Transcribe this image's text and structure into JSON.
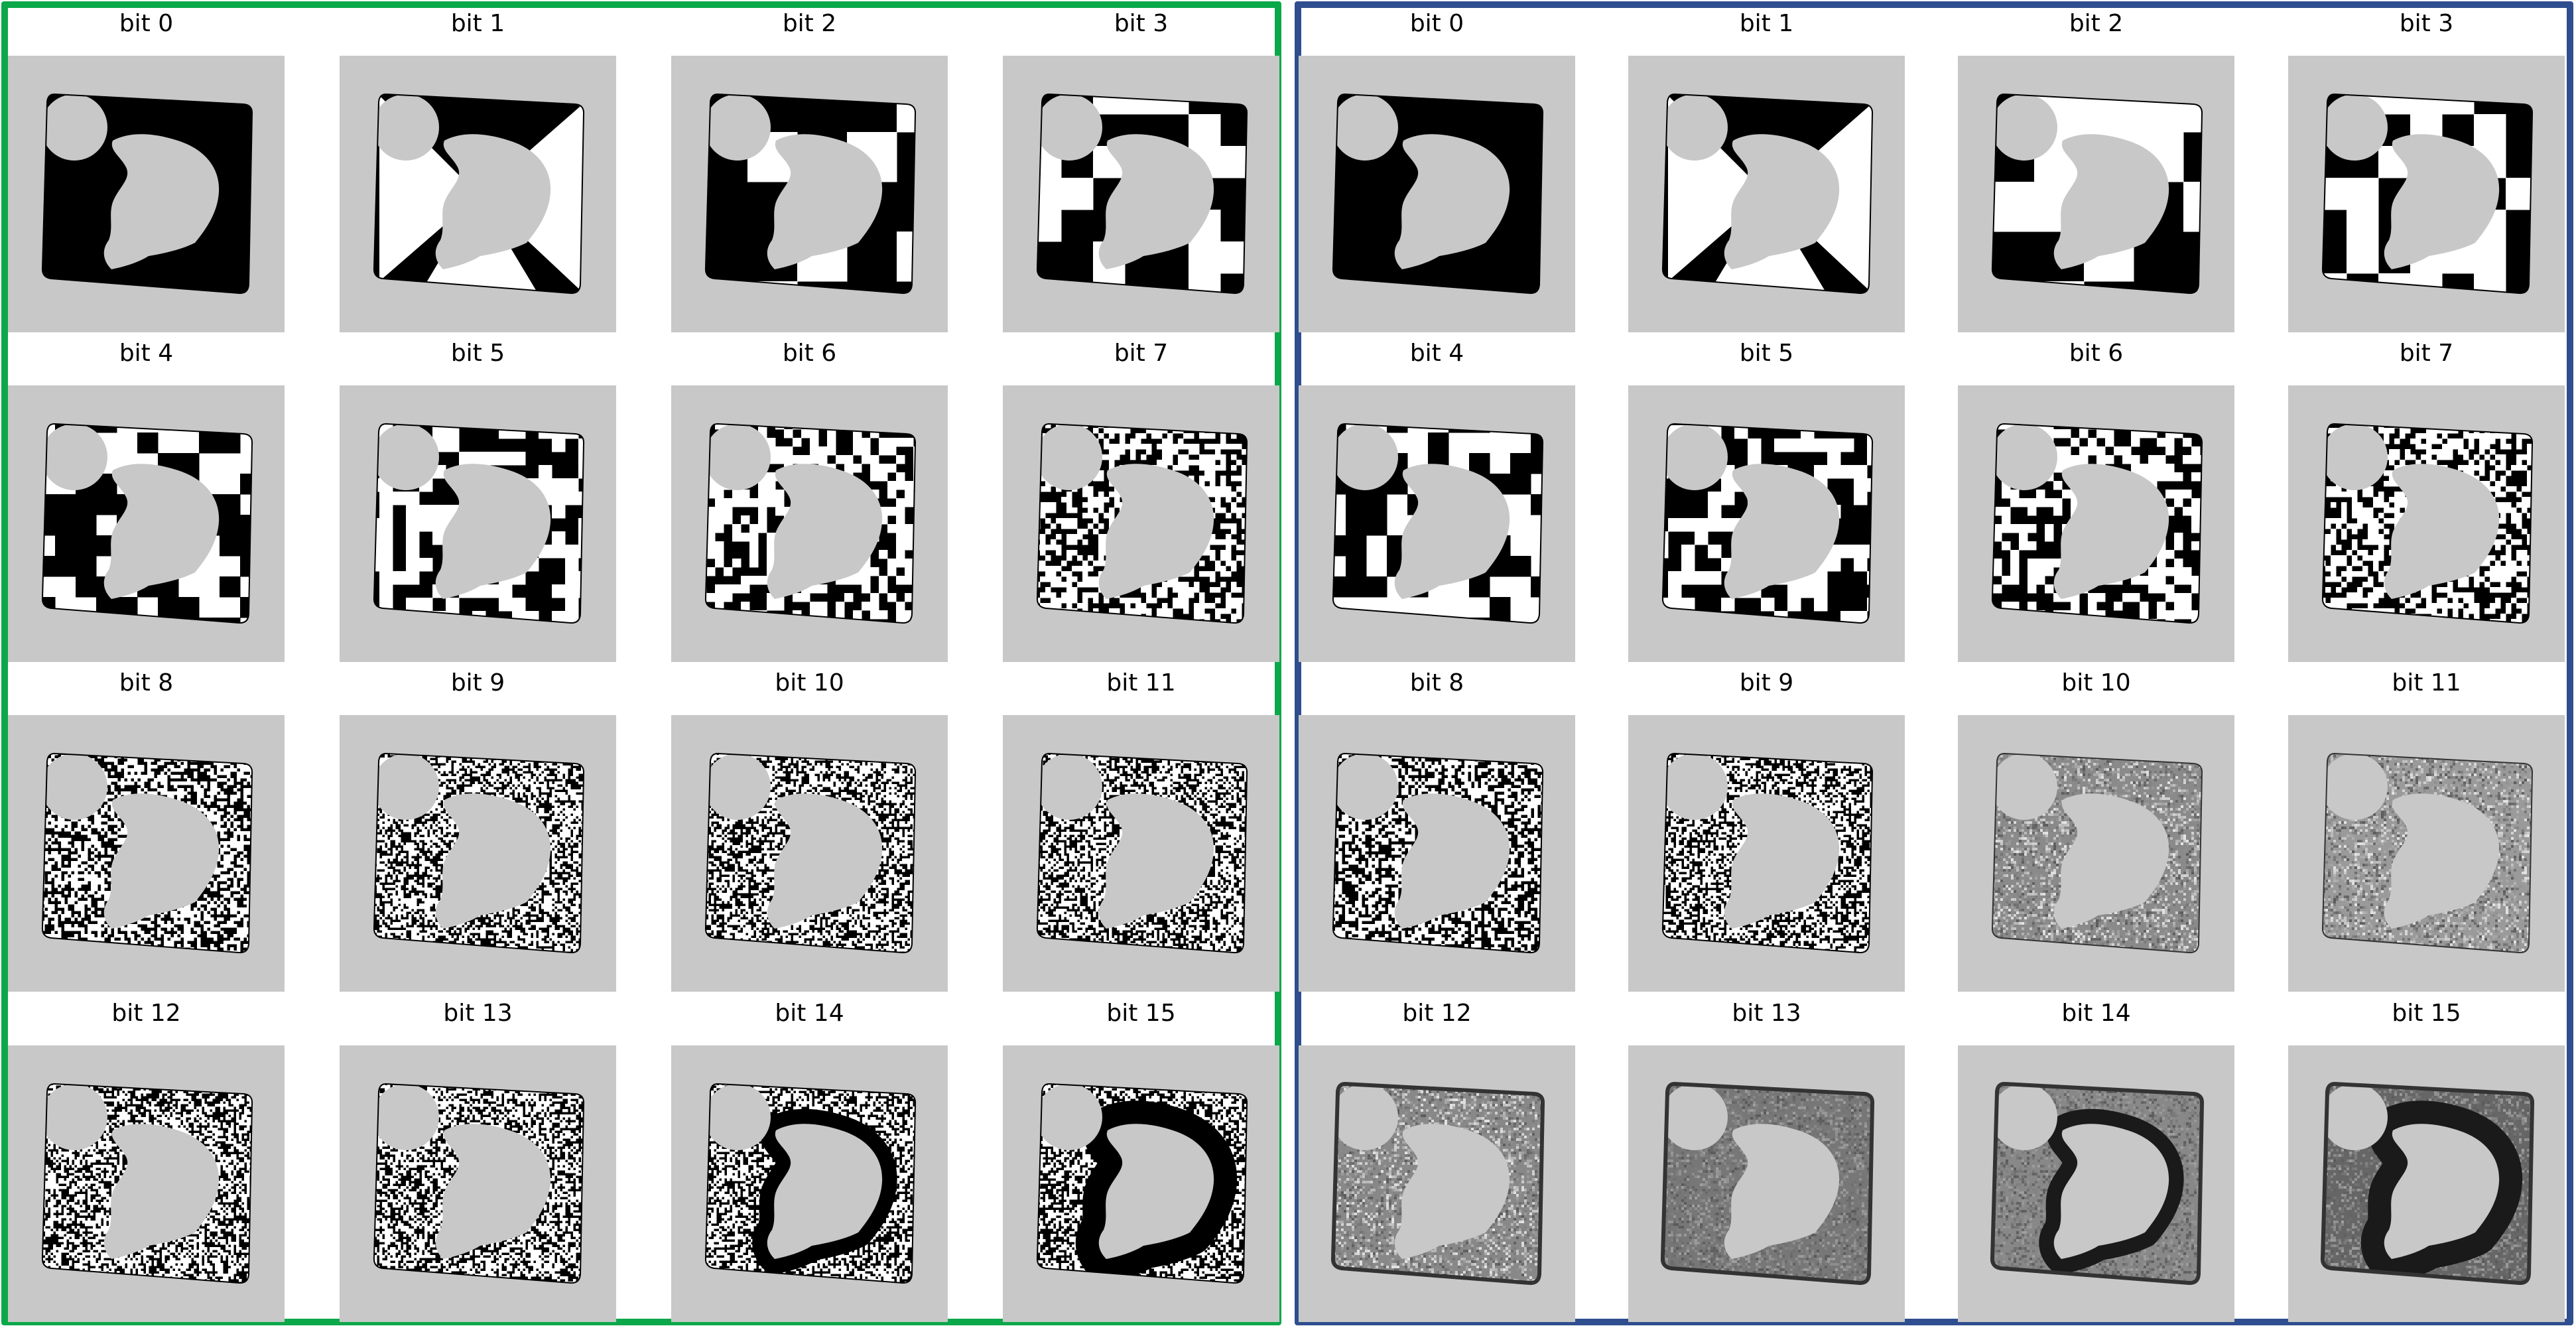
{
  "colors": {
    "left_frame": "#0ba84a",
    "right_frame": "#2f4e8f",
    "tile_background": "#c8c8c8"
  },
  "panels": [
    {
      "kind": "binary",
      "cells": [
        {
          "label": "bit 0"
        },
        {
          "label": "bit 1"
        },
        {
          "label": "bit 2"
        },
        {
          "label": "bit 3"
        },
        {
          "label": "bit 4"
        },
        {
          "label": "bit 5"
        },
        {
          "label": "bit 6"
        },
        {
          "label": "bit 7"
        },
        {
          "label": "bit 8"
        },
        {
          "label": "bit 9"
        },
        {
          "label": "bit 10"
        },
        {
          "label": "bit 11"
        },
        {
          "label": "bit 12"
        },
        {
          "label": "bit 13"
        },
        {
          "label": "bit 14"
        },
        {
          "label": "bit 15"
        }
      ]
    },
    {
      "kind": "grayscale",
      "cells": [
        {
          "label": "bit 0"
        },
        {
          "label": "bit 1"
        },
        {
          "label": "bit 2"
        },
        {
          "label": "bit 3"
        },
        {
          "label": "bit 4"
        },
        {
          "label": "bit 5"
        },
        {
          "label": "bit 6"
        },
        {
          "label": "bit 7"
        },
        {
          "label": "bit 8"
        },
        {
          "label": "bit 9"
        },
        {
          "label": "bit 10"
        },
        {
          "label": "bit 11"
        },
        {
          "label": "bit 12"
        },
        {
          "label": "bit 13"
        },
        {
          "label": "bit 14"
        },
        {
          "label": "bit 15"
        }
      ]
    }
  ]
}
